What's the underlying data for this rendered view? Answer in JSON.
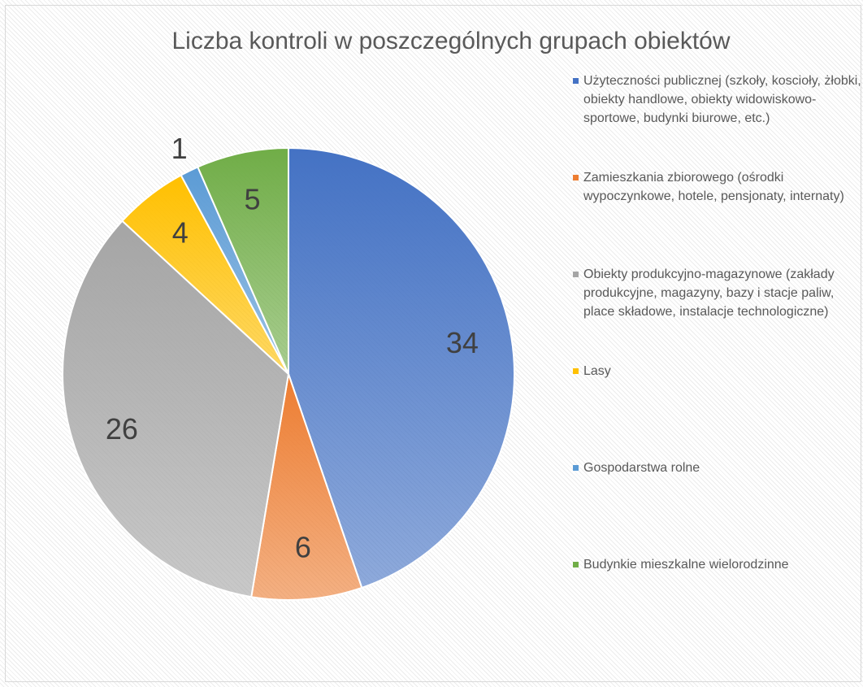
{
  "chart_data": {
    "type": "pie",
    "title": "Liczba kontroli w poszczególnych grupach obiektów",
    "categories": [
      "Użyteczności publicznej (szkoły, koscioły, żłobki, obiekty handlowe, obiekty widowiskowo-sportowe, budynki biurowe, etc.)",
      "Zamieszkania zbiorowego (ośrodki wypoczynkowe, hotele, pensjonaty, internaty)",
      "Obiekty produkcyjno-magazynowe (zakłady produkcyjne, magazyny, bazy i stacje paliw, place składowe, instalacje technologiczne)",
      "Lasy",
      "Gospodarstwa rolne",
      "Budynkie mieszkalne wielorodzinne"
    ],
    "values": [
      34,
      6,
      26,
      4,
      1,
      5
    ],
    "colors": [
      "#4472c4",
      "#ed7d31",
      "#a5a5a5",
      "#ffc000",
      "#5b9bd5",
      "#70ad47"
    ],
    "legend": "right"
  }
}
